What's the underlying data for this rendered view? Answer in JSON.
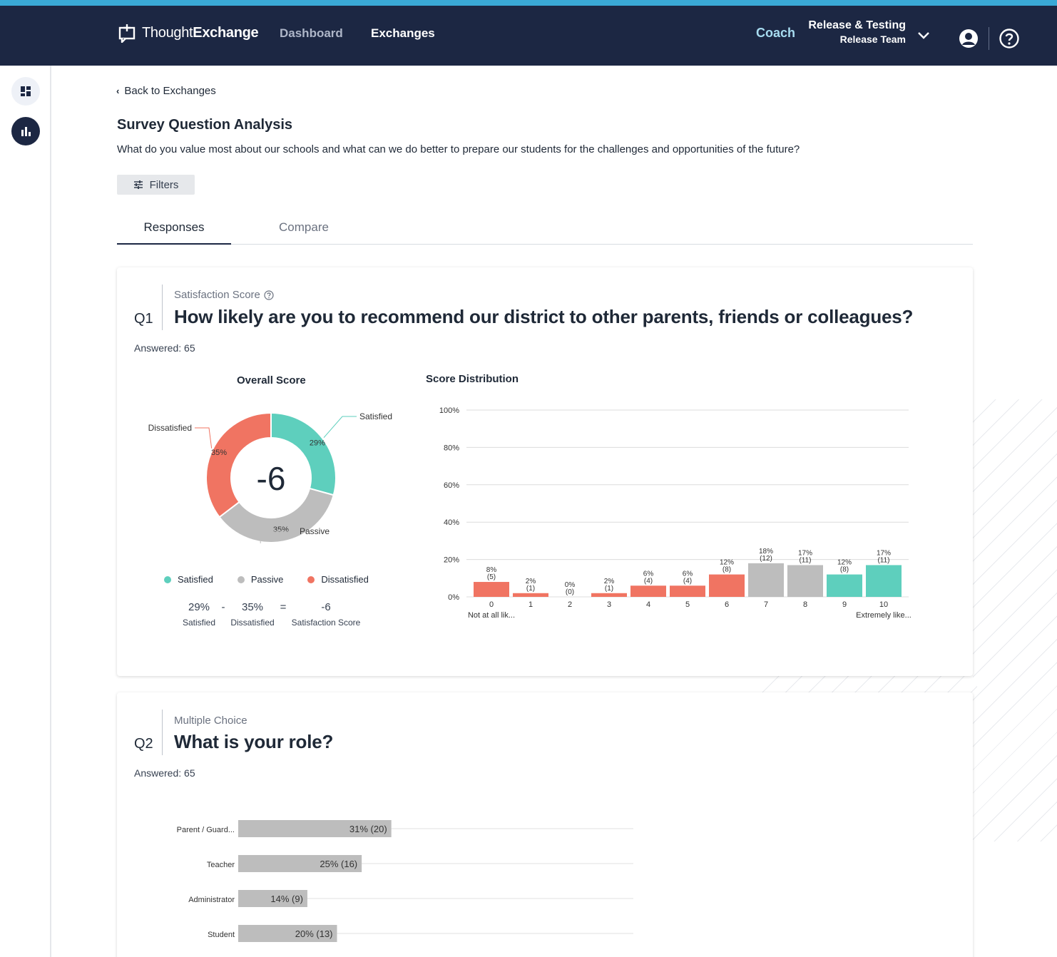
{
  "app": {
    "logo_thin": "Thought",
    "logo_bold": "Exchange",
    "nav_dashboard": "Dashboard",
    "nav_exchanges": "Exchanges",
    "coach": "Coach",
    "org_name": "Release & Testing",
    "org_team": "Release Team",
    "colors": {
      "header": "#1c2743",
      "accent_stripe": "#3aa9d6",
      "coach": "#a7dcf0"
    }
  },
  "page": {
    "back_link": "Back to Exchanges",
    "title": "Survey Question Analysis",
    "question": "What do you value most about our schools and what can we do better to prepare our students for the challenges and opportunities of the future?",
    "filters_label": "Filters",
    "tabs": [
      {
        "label": "Responses",
        "active": true
      },
      {
        "label": "Compare",
        "active": false
      }
    ]
  },
  "q1": {
    "number": "Q1",
    "type": "Satisfaction Score",
    "text": "How likely are you to recommend our district to other parents, friends or colleagues?",
    "answered": "Answered: 65",
    "overall_title": "Overall Score",
    "distribution_title": "Score Distribution",
    "legend": [
      {
        "label": "Satisfied",
        "color": "#5ecfbd"
      },
      {
        "label": "Passive",
        "color": "#bdbdbd"
      },
      {
        "label": "Dissatisfied",
        "color": "#f07462"
      }
    ],
    "formula": {
      "satisfied_value": "29%",
      "minus": "-",
      "dissatisfied_value": "35%",
      "equals": "=",
      "score_value": "-6",
      "satisfied_label": "Satisfied",
      "dissatisfied_label": "Dissatisfied",
      "score_label": "Satisfaction Score"
    }
  },
  "q2": {
    "number": "Q2",
    "type": "Multiple Choice",
    "text": "What is your role?",
    "answered": "Answered: 65"
  },
  "chart_data": [
    {
      "type": "pie",
      "title": "Overall Score",
      "center_label": "-6",
      "slices": [
        {
          "label": "Satisfied",
          "value": 29,
          "value_label": "29%",
          "color": "#5ecfbd"
        },
        {
          "label": "Passive",
          "value": 35,
          "value_label": "35%",
          "color": "#bdbdbd"
        },
        {
          "label": "Dissatisfied",
          "value": 35,
          "value_label": "35%",
          "color": "#f07462"
        }
      ]
    },
    {
      "type": "bar",
      "title": "Score Distribution",
      "categories": [
        "0",
        "1",
        "2",
        "3",
        "4",
        "5",
        "6",
        "7",
        "8",
        "9",
        "10"
      ],
      "values": [
        8,
        2,
        0,
        2,
        6,
        6,
        12,
        18,
        17,
        12,
        17
      ],
      "counts": [
        5,
        1,
        0,
        1,
        4,
        4,
        8,
        12,
        11,
        8,
        11
      ],
      "groups": [
        "dissatisfied",
        "dissatisfied",
        "dissatisfied",
        "dissatisfied",
        "dissatisfied",
        "dissatisfied",
        "dissatisfied",
        "passive",
        "passive",
        "satisfied",
        "satisfied"
      ],
      "yticks": [
        "0%",
        "20%",
        "40%",
        "60%",
        "80%",
        "100%"
      ],
      "ylim": [
        0,
        100
      ],
      "end_labels": [
        "Not at all lik...",
        "Extremely like..."
      ],
      "colors": {
        "dissatisfied": "#f07462",
        "passive": "#bdbdbd",
        "satisfied": "#5ecfbd"
      },
      "grid": true
    },
    {
      "type": "bar",
      "orientation": "horizontal",
      "categories": [
        "Parent / Guard...",
        "Teacher",
        "Administrator",
        "Student"
      ],
      "values": [
        31,
        25,
        14,
        20
      ],
      "counts": [
        20,
        16,
        9,
        13
      ],
      "value_labels": [
        "31% (20)",
        "25% (16)",
        "14% (9)",
        "20% (13)"
      ],
      "color": "#bdbdbd",
      "xlim": [
        0,
        80
      ]
    }
  ]
}
